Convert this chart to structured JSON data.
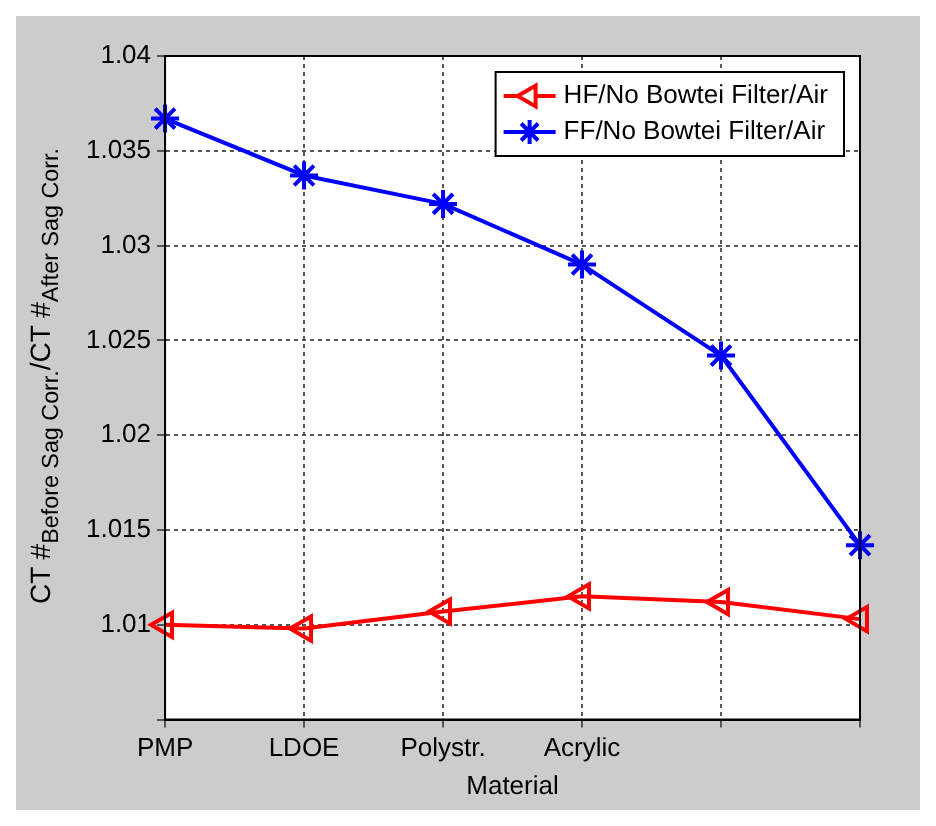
{
  "chart_data": {
    "type": "line",
    "xlabel": "Material",
    "ylabel": "CT #$_{Before Sag Corr.}$/CT #$_{After Sag Corr.}$",
    "categories": [
      "PMP",
      "LDOE",
      "Polystr.",
      "Acrylic",
      null,
      null
    ],
    "series": [
      {
        "name": "HF/No Bowtei Filter/Air",
        "color": "#ff0000",
        "marker": "triangle",
        "values": [
          1.01,
          1.0098,
          1.0107,
          1.0115,
          1.0112,
          1.0103
        ]
      },
      {
        "name": "FF/No Bowtei Filter/Air",
        "color": "#0000ff",
        "marker": "cross",
        "values": [
          1.0367,
          1.0337,
          1.0322,
          1.029,
          1.0242,
          1.0142
        ]
      }
    ],
    "ylim": [
      1.005,
      1.04
    ],
    "yticks": [
      {
        "value": 1.005,
        "label": null
      },
      1.01,
      1.015,
      1.02,
      1.025,
      1.03,
      1.035,
      1.04
    ],
    "grid": true,
    "legend": "top right",
    "line_style": "solid"
  }
}
